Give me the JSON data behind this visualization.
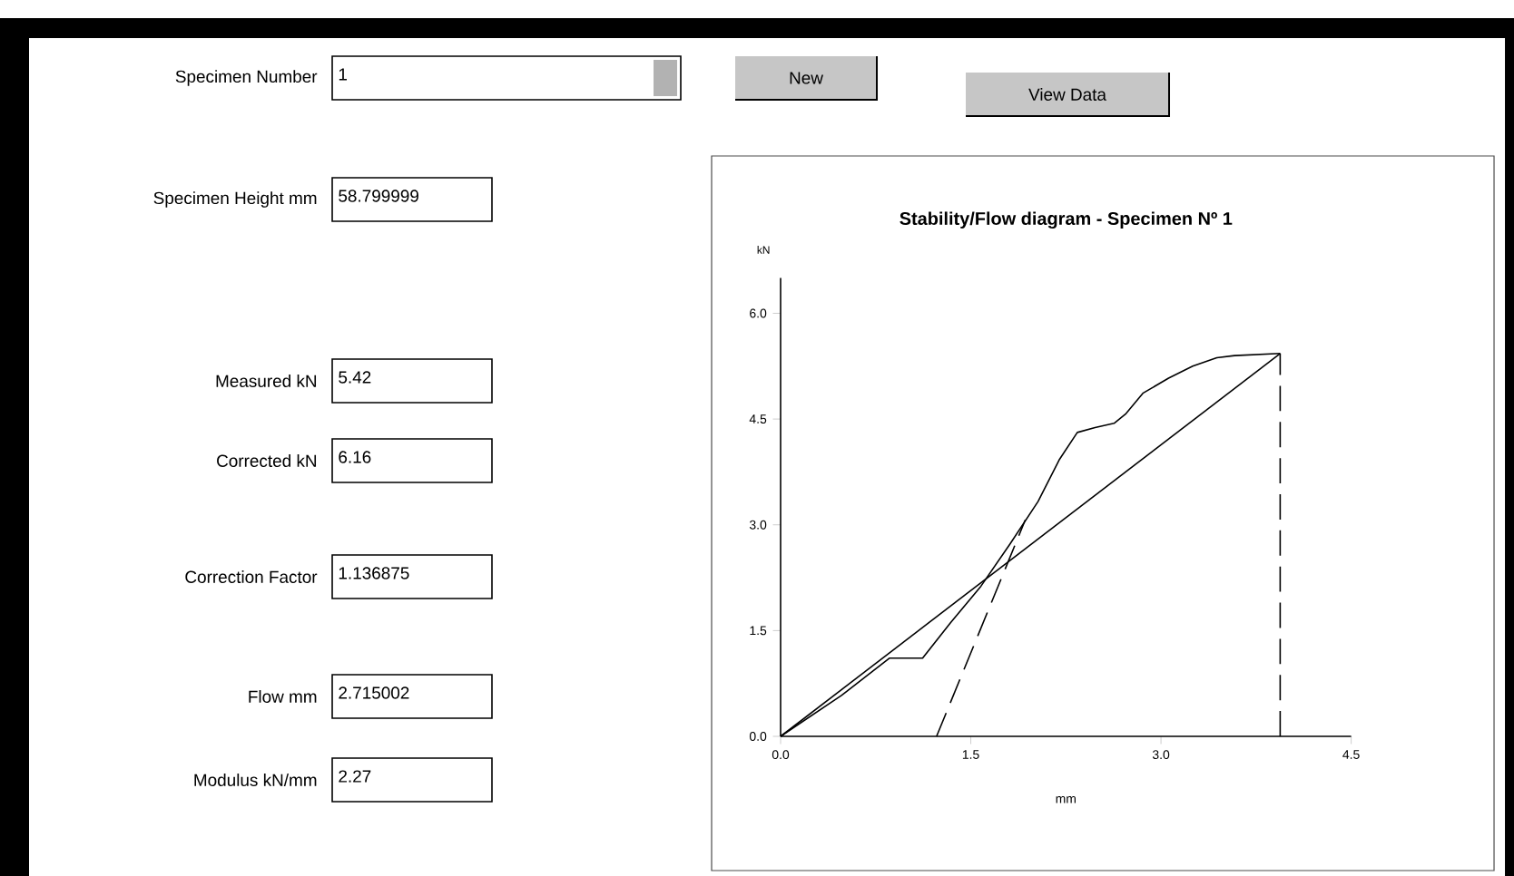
{
  "chart_data": [
    {
      "type": "other",
      "annotations": [
        "Specimen Number",
        "1",
        "New",
        "View Data",
        "Specimen Height mm",
        "58.799999",
        "Measured kN",
        "5.42",
        "Corrected kN",
        "6.16",
        "Correction Factor",
        "1.136875",
        "Flow mm",
        "2.715002",
        "Modulus kN/mm",
        "2.27"
      ]
    },
    {
      "type": "line",
      "title": "Stability/Flow diagram - Specimen Nº 1",
      "xlabel": "mm",
      "ylabel": "kN",
      "xlim": [
        0,
        4.5
      ],
      "ylim": [
        0,
        6.5
      ],
      "xticks": [
        {
          "value": 0,
          "label": "0.0"
        },
        {
          "value": 1.5,
          "label": "1.5"
        },
        {
          "value": 3,
          "label": "3.0"
        },
        {
          "value": 4.5,
          "label": "4.5"
        }
      ],
      "yticks": [
        {
          "value": 0,
          "label": "0.0"
        },
        {
          "value": 1.5,
          "label": "1.5"
        },
        {
          "value": 3,
          "label": "3.0"
        },
        {
          "value": 4.5,
          "label": "4.5"
        },
        {
          "value": 6,
          "label": "6.0"
        }
      ],
      "series": [
        {
          "color": "#000000",
          "line_style": "solid",
          "x": [
            0,
            0.48,
            0.86,
            1.12,
            1.34,
            1.58,
            1.81,
            2.03,
            2.2,
            2.34,
            2.48,
            2.63,
            2.72,
            2.86,
            3.06,
            3.25,
            3.44,
            3.58,
            3.94
          ],
          "values": [
            0,
            0.58,
            1.11,
            1.11,
            1.61,
            2.13,
            2.73,
            3.33,
            3.93,
            4.31,
            4.38,
            4.44,
            4.57,
            4.87,
            5.08,
            5.25,
            5.37,
            5.4,
            5.43
          ]
        },
        {
          "color": "#000000",
          "line_style": "solid",
          "x": [
            0,
            3.94
          ],
          "values": [
            0,
            5.43
          ]
        },
        {
          "color": "#000000",
          "line_style": "dashed",
          "x": [
            1.23,
            1.93
          ],
          "values": [
            0,
            3.07
          ]
        },
        {
          "color": "#000000",
          "line_style": "dashed",
          "x": [
            3.94,
            3.94
          ],
          "values": [
            0,
            5.43
          ]
        }
      ]
    }
  ]
}
